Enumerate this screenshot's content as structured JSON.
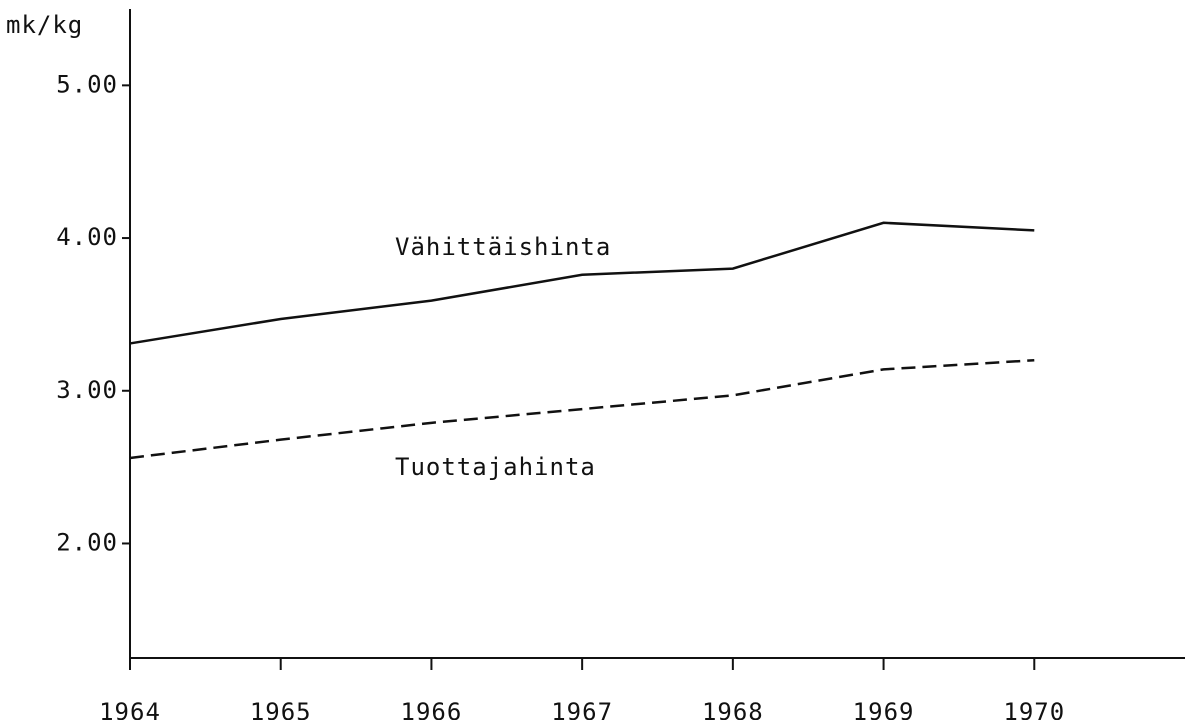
{
  "chart_data": {
    "type": "line",
    "y_label": "mk/kg",
    "x": [
      1964,
      1965,
      1966,
      1967,
      1968,
      1969,
      1970
    ],
    "series": [
      {
        "name": "Vähittäishinta",
        "color": "#111111",
        "style": "solid",
        "values": [
          3.31,
          3.47,
          3.59,
          3.76,
          3.8,
          4.1,
          4.05
        ]
      },
      {
        "name": "Tuottajahinta",
        "color": "#111111",
        "style": "dashed",
        "values": [
          2.56,
          2.68,
          2.79,
          2.88,
          2.97,
          3.14,
          3.2
        ]
      }
    ],
    "xlim": [
      1964,
      1971
    ],
    "xticks": [
      1964,
      1965,
      1966,
      1967,
      1968,
      1969,
      1970
    ],
    "ylim": [
      1.25,
      5.5
    ],
    "yticks": [
      {
        "value": 2,
        "label": "2.00"
      },
      {
        "value": 3,
        "label": "3.00"
      },
      {
        "value": 4,
        "label": "4.00"
      },
      {
        "value": 5,
        "label": "5.00"
      }
    ],
    "grid": false
  }
}
